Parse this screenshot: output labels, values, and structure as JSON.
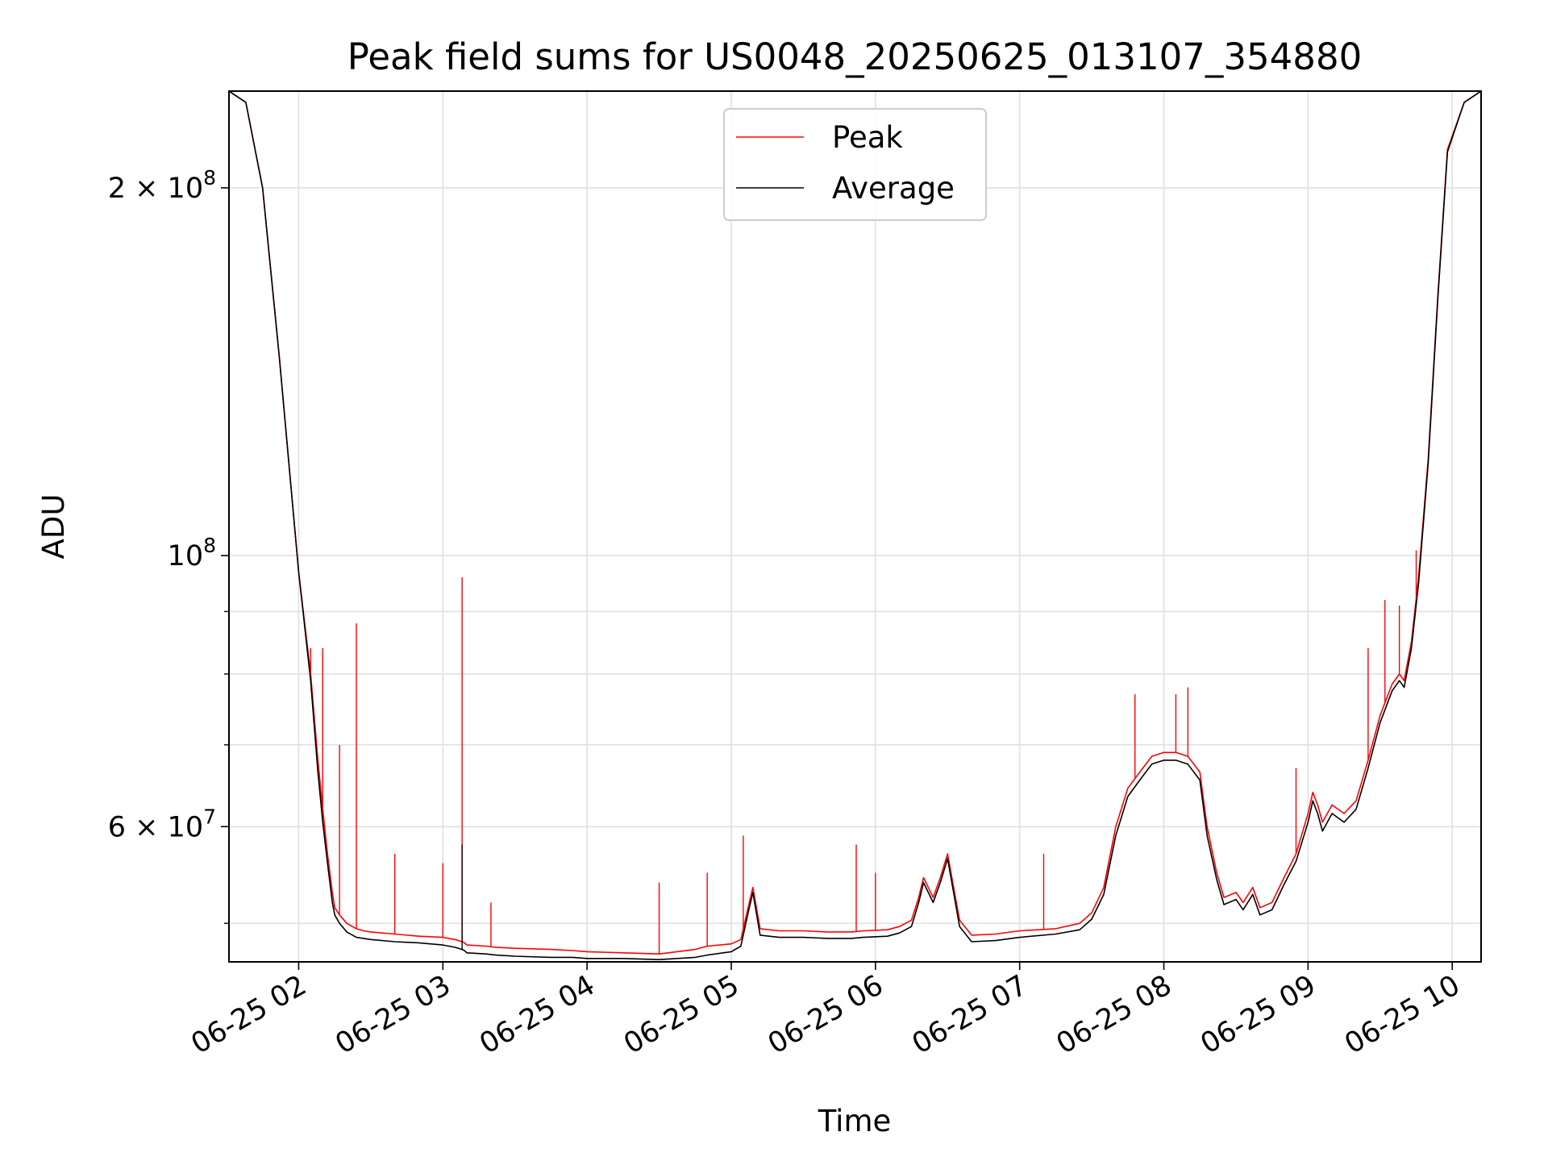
{
  "chart_data": {
    "type": "line",
    "title": "Peak field sums for US0048_20250625_013107_354880",
    "xlabel": "Time",
    "ylabel": "ADU",
    "yscale": "log",
    "ylim": [
      46500000,
      240000000
    ],
    "xlim": [
      "2025-06-25 01:31",
      "2025-06-25 10:12"
    ],
    "grid": true,
    "legend_position": "upper center",
    "x_ticks": [
      {
        "t": "2025-06-25 02:00",
        "label": "06-25 02"
      },
      {
        "t": "2025-06-25 03:00",
        "label": "06-25 03"
      },
      {
        "t": "2025-06-25 04:00",
        "label": "06-25 04"
      },
      {
        "t": "2025-06-25 05:00",
        "label": "06-25 05"
      },
      {
        "t": "2025-06-25 06:00",
        "label": "06-25 06"
      },
      {
        "t": "2025-06-25 07:00",
        "label": "06-25 07"
      },
      {
        "t": "2025-06-25 08:00",
        "label": "06-25 08"
      },
      {
        "t": "2025-06-25 09:00",
        "label": "06-25 09"
      },
      {
        "t": "2025-06-25 10:00",
        "label": "06-25 10"
      }
    ],
    "y_major_ticks": [
      {
        "v": 60000000,
        "mant": "6",
        "exp": "7"
      },
      {
        "v": 100000000,
        "mant": "",
        "exp": "8"
      },
      {
        "v": 200000000,
        "mant": "2",
        "exp": "8"
      }
    ],
    "y_minor_ticks": [
      50000000,
      70000000,
      80000000,
      90000000
    ],
    "series": [
      {
        "name": "Peak",
        "color": "#ff0000",
        "x": [
          "2025-06-25 01:31",
          "2025-06-25 01:38",
          "2025-06-25 01:45",
          "2025-06-25 01:52",
          "2025-06-25 02:00",
          "2025-06-25 02:05",
          "2025-06-25 02:08",
          "2025-06-25 02:10",
          "2025-06-25 02:12",
          "2025-06-25 02:14",
          "2025-06-25 02:15",
          "2025-06-25 02:17",
          "2025-06-25 02:20",
          "2025-06-25 02:24",
          "2025-06-25 02:27",
          "2025-06-25 02:30",
          "2025-06-25 02:40",
          "2025-06-25 02:50",
          "2025-06-25 03:00",
          "2025-06-25 03:05",
          "2025-06-25 03:08",
          "2025-06-25 03:09",
          "2025-06-25 03:10",
          "2025-06-25 03:18",
          "2025-06-25 03:22",
          "2025-06-25 03:30",
          "2025-06-25 03:45",
          "2025-06-25 03:54",
          "2025-06-25 04:00",
          "2025-06-25 04:15",
          "2025-06-25 04:30",
          "2025-06-25 04:45",
          "2025-06-25 04:50",
          "2025-06-25 05:00",
          "2025-06-25 05:04",
          "2025-06-25 05:07",
          "2025-06-25 05:09",
          "2025-06-25 05:12",
          "2025-06-25 05:20",
          "2025-06-25 05:30",
          "2025-06-25 05:40",
          "2025-06-25 05:50",
          "2025-06-25 05:55",
          "2025-06-25 06:05",
          "2025-06-25 06:10",
          "2025-06-25 06:15",
          "2025-06-25 06:18",
          "2025-06-25 06:20",
          "2025-06-25 06:22",
          "2025-06-25 06:24",
          "2025-06-25 06:27",
          "2025-06-25 06:30",
          "2025-06-25 06:35",
          "2025-06-25 06:40",
          "2025-06-25 06:50",
          "2025-06-25 07:00",
          "2025-06-25 07:15",
          "2025-06-25 07:25",
          "2025-06-25 07:30",
          "2025-06-25 07:35",
          "2025-06-25 07:40",
          "2025-06-25 07:45",
          "2025-06-25 07:50",
          "2025-06-25 07:55",
          "2025-06-25 08:00",
          "2025-06-25 08:05",
          "2025-06-25 08:10",
          "2025-06-25 08:15",
          "2025-06-25 08:18",
          "2025-06-25 08:22",
          "2025-06-25 08:25",
          "2025-06-25 08:30",
          "2025-06-25 08:33",
          "2025-06-25 08:37",
          "2025-06-25 08:40",
          "2025-06-25 08:45",
          "2025-06-25 08:50",
          "2025-06-25 08:55",
          "2025-06-25 09:00",
          "2025-06-25 09:02",
          "2025-06-25 09:04",
          "2025-06-25 09:06",
          "2025-06-25 09:10",
          "2025-06-25 09:15",
          "2025-06-25 09:20",
          "2025-06-25 09:25",
          "2025-06-25 09:30",
          "2025-06-25 09:35",
          "2025-06-25 09:38",
          "2025-06-25 09:40",
          "2025-06-25 09:43",
          "2025-06-25 09:46",
          "2025-06-25 09:50",
          "2025-06-25 09:54",
          "2025-06-25 09:58",
          "2025-06-25 10:05",
          "2025-06-25 10:12"
        ],
        "values": [
          240000000,
          235000000,
          200000000,
          145000000,
          97000000,
          80000000,
          68000000,
          62000000,
          57000000,
          53000000,
          51500000,
          50800000,
          50000000,
          49500000,
          49300000,
          49200000,
          49000000,
          48800000,
          48700000,
          48500000,
          48300000,
          48200000,
          48000000,
          47900000,
          47800000,
          47700000,
          47600000,
          47500000,
          47400000,
          47300000,
          47200000,
          47600000,
          47900000,
          48100000,
          48500000,
          51500000,
          53500000,
          49500000,
          49300000,
          49300000,
          49200000,
          49200000,
          49300000,
          49400000,
          49700000,
          50300000,
          52500000,
          54500000,
          53500000,
          52500000,
          54500000,
          57000000,
          50300000,
          48900000,
          49000000,
          49300000,
          49500000,
          50000000,
          51000000,
          53500000,
          60000000,
          64500000,
          66500000,
          68500000,
          69000000,
          69000000,
          68500000,
          66500000,
          60000000,
          55000000,
          52500000,
          53000000,
          52000000,
          53500000,
          51500000,
          52000000,
          54500000,
          57000000,
          61500000,
          64000000,
          62500000,
          60500000,
          62500000,
          61500000,
          63000000,
          68000000,
          74000000,
          78500000,
          80000000,
          79000000,
          85000000,
          96000000,
          120000000,
          163000000,
          215000000,
          235000000,
          240000000
        ]
      },
      {
        "name": "Average",
        "color": "#000000",
        "x": [
          "2025-06-25 01:31",
          "2025-06-25 01:38",
          "2025-06-25 01:45",
          "2025-06-25 01:52",
          "2025-06-25 02:00",
          "2025-06-25 02:05",
          "2025-06-25 02:08",
          "2025-06-25 02:10",
          "2025-06-25 02:12",
          "2025-06-25 02:14",
          "2025-06-25 02:15",
          "2025-06-25 02:17",
          "2025-06-25 02:20",
          "2025-06-25 02:24",
          "2025-06-25 02:27",
          "2025-06-25 02:30",
          "2025-06-25 02:40",
          "2025-06-25 02:50",
          "2025-06-25 03:00",
          "2025-06-25 03:05",
          "2025-06-25 03:08",
          "2025-06-25 03:09",
          "2025-06-25 03:10",
          "2025-06-25 03:18",
          "2025-06-25 03:22",
          "2025-06-25 03:30",
          "2025-06-25 03:45",
          "2025-06-25 03:54",
          "2025-06-25 04:00",
          "2025-06-25 04:15",
          "2025-06-25 04:30",
          "2025-06-25 04:45",
          "2025-06-25 04:50",
          "2025-06-25 05:00",
          "2025-06-25 05:04",
          "2025-06-25 05:07",
          "2025-06-25 05:09",
          "2025-06-25 05:12",
          "2025-06-25 05:20",
          "2025-06-25 05:30",
          "2025-06-25 05:40",
          "2025-06-25 05:50",
          "2025-06-25 05:55",
          "2025-06-25 06:05",
          "2025-06-25 06:10",
          "2025-06-25 06:15",
          "2025-06-25 06:18",
          "2025-06-25 06:20",
          "2025-06-25 06:22",
          "2025-06-25 06:24",
          "2025-06-25 06:27",
          "2025-06-25 06:30",
          "2025-06-25 06:35",
          "2025-06-25 06:40",
          "2025-06-25 06:50",
          "2025-06-25 07:00",
          "2025-06-25 07:15",
          "2025-06-25 07:25",
          "2025-06-25 07:30",
          "2025-06-25 07:35",
          "2025-06-25 07:40",
          "2025-06-25 07:45",
          "2025-06-25 07:50",
          "2025-06-25 07:55",
          "2025-06-25 08:00",
          "2025-06-25 08:05",
          "2025-06-25 08:10",
          "2025-06-25 08:15",
          "2025-06-25 08:18",
          "2025-06-25 08:22",
          "2025-06-25 08:25",
          "2025-06-25 08:30",
          "2025-06-25 08:33",
          "2025-06-25 08:37",
          "2025-06-25 08:40",
          "2025-06-25 08:45",
          "2025-06-25 08:50",
          "2025-06-25 08:55",
          "2025-06-25 09:00",
          "2025-06-25 09:02",
          "2025-06-25 09:04",
          "2025-06-25 09:06",
          "2025-06-25 09:10",
          "2025-06-25 09:15",
          "2025-06-25 09:20",
          "2025-06-25 09:25",
          "2025-06-25 09:30",
          "2025-06-25 09:35",
          "2025-06-25 09:38",
          "2025-06-25 09:40",
          "2025-06-25 09:43",
          "2025-06-25 09:46",
          "2025-06-25 09:50",
          "2025-06-25 09:54",
          "2025-06-25 09:58",
          "2025-06-25 10:05",
          "2025-06-25 10:12"
        ],
        "values": [
          240000000,
          235000000,
          200000000,
          145000000,
          97000000,
          79000000,
          66500000,
          60500000,
          56000000,
          52000000,
          50800000,
          50000000,
          49200000,
          48700000,
          48600000,
          48500000,
          48300000,
          48200000,
          48000000,
          47800000,
          47600000,
          47500000,
          47300000,
          47200000,
          47100000,
          47000000,
          46900000,
          46900000,
          46800000,
          46800000,
          46700000,
          46900000,
          47100000,
          47400000,
          47900000,
          51000000,
          53000000,
          48900000,
          48700000,
          48700000,
          48600000,
          48600000,
          48700000,
          48800000,
          49100000,
          49700000,
          52000000,
          54000000,
          53000000,
          52000000,
          54000000,
          56500000,
          49700000,
          48300000,
          48400000,
          48700000,
          49000000,
          49400000,
          50400000,
          52800000,
          59000000,
          63500000,
          65500000,
          67500000,
          68000000,
          68000000,
          67500000,
          65500000,
          59000000,
          54300000,
          51800000,
          52300000,
          51300000,
          52800000,
          50800000,
          51300000,
          53800000,
          56200000,
          60500000,
          63000000,
          61500000,
          59500000,
          61500000,
          60500000,
          62000000,
          67000000,
          73000000,
          77500000,
          79000000,
          78000000,
          84000000,
          95000000,
          119000000,
          162000000,
          214000000,
          235000000,
          240000000
        ]
      }
    ],
    "spikes": [
      {
        "series": "Peak",
        "x": "2025-06-25 02:05",
        "y": 84000000
      },
      {
        "series": "Peak",
        "x": "2025-06-25 02:10",
        "y": 84000000
      },
      {
        "series": "Peak",
        "x": "2025-06-25 02:17",
        "y": 70000000
      },
      {
        "series": "Peak",
        "x": "2025-06-25 02:24",
        "y": 88000000
      },
      {
        "series": "Peak",
        "x": "2025-06-25 02:40",
        "y": 57000000
      },
      {
        "series": "Peak",
        "x": "2025-06-25 03:00",
        "y": 56000000
      },
      {
        "series": "Peak",
        "x": "2025-06-25 03:08",
        "y": 96000000
      },
      {
        "series": "Peak",
        "x": "2025-06-25 03:20",
        "y": 52000000
      },
      {
        "series": "Peak",
        "x": "2025-06-25 04:30",
        "y": 54000000
      },
      {
        "series": "Peak",
        "x": "2025-06-25 04:50",
        "y": 55000000
      },
      {
        "series": "Peak",
        "x": "2025-06-25 05:05",
        "y": 59000000
      },
      {
        "series": "Peak",
        "x": "2025-06-25 05:52",
        "y": 58000000
      },
      {
        "series": "Peak",
        "x": "2025-06-25 06:00",
        "y": 55000000
      },
      {
        "series": "Peak",
        "x": "2025-06-25 07:10",
        "y": 57000000
      },
      {
        "series": "Peak",
        "x": "2025-06-25 07:48",
        "y": 77000000
      },
      {
        "series": "Peak",
        "x": "2025-06-25 08:05",
        "y": 77000000
      },
      {
        "series": "Peak",
        "x": "2025-06-25 08:10",
        "y": 78000000
      },
      {
        "series": "Peak",
        "x": "2025-06-25 08:55",
        "y": 67000000
      },
      {
        "series": "Peak",
        "x": "2025-06-25 09:25",
        "y": 84000000
      },
      {
        "series": "Peak",
        "x": "2025-06-25 09:32",
        "y": 92000000
      },
      {
        "series": "Peak",
        "x": "2025-06-25 09:38",
        "y": 91000000
      },
      {
        "series": "Peak",
        "x": "2025-06-25 09:45",
        "y": 101000000
      },
      {
        "series": "Average",
        "x": "2025-06-25 03:08",
        "y": 58000000
      }
    ]
  }
}
